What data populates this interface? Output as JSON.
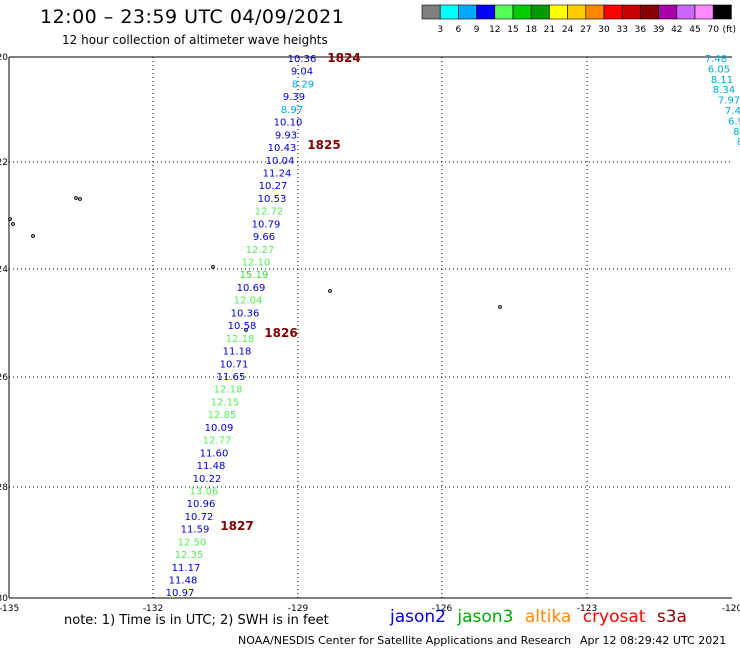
{
  "header": {
    "title": "12:00 – 23:59 UTC 04/09/2021",
    "subtitle": "12 hour collection of altimeter wave heights"
  },
  "colorbar": {
    "colors": [
      "#7f7f7f",
      "#00ffff",
      "#00aaff",
      "#0000ff",
      "#55ff55",
      "#00cc00",
      "#009900",
      "#ffff00",
      "#ffcc00",
      "#ff8800",
      "#ff0000",
      "#cc0000",
      "#880000",
      "#aa00aa",
      "#cc66ff",
      "#ff88ff",
      "#000000"
    ],
    "labels": [
      "3",
      "6",
      "9",
      "12",
      "15",
      "18",
      "21",
      "24",
      "27",
      "30",
      "33",
      "36",
      "39",
      "42",
      "45",
      "70"
    ],
    "unit": "(ft)"
  },
  "axes": {
    "lon_ticks": [
      "-135",
      "-132",
      "-129",
      "-126",
      "-123",
      "-120"
    ],
    "lat_ticks": [
      "20",
      "22",
      "24",
      "26",
      "28",
      "30"
    ]
  },
  "track": {
    "values": [
      "10.36",
      "9.04",
      "8.29",
      "9.39",
      "8.97",
      "10.10",
      "9.93",
      "10.43",
      "10.04",
      "11.24",
      "10.27",
      "10.53",
      "12.72",
      "10.79",
      "9.66",
      "12.27",
      "12.10",
      "15.19",
      "10.69",
      "12.04",
      "10.36",
      "10.58",
      "12.18",
      "11.18",
      "10.71",
      "11.65",
      "12.18",
      "12.15",
      "12.85",
      "10.09",
      "12.77",
      "11.60",
      "11.48",
      "10.22",
      "13.06",
      "10.96",
      "10.72",
      "11.59",
      "12.50",
      "12.35",
      "11.17",
      "11.48",
      "10.97"
    ],
    "colors": [
      "#0000cc",
      "#0000cc",
      "#00aaff",
      "#0000cc",
      "#00aaff",
      "#0000cc",
      "#0000cc",
      "#0000cc",
      "#0000cc",
      "#0000cc",
      "#0000cc",
      "#0000cc",
      "#55ee55",
      "#0000cc",
      "#0000cc",
      "#55ee55",
      "#55ee55",
      "#33dd33",
      "#0000cc",
      "#55ee55",
      "#0000cc",
      "#0000cc",
      "#55ee55",
      "#0000cc",
      "#0000cc",
      "#0000cc",
      "#55ee55",
      "#55ee55",
      "#55ee55",
      "#0000cc",
      "#55ee55",
      "#0000cc",
      "#0000cc",
      "#0000cc",
      "#55ee55",
      "#0000cc",
      "#0000cc",
      "#0000cc",
      "#55ee55",
      "#55ee55",
      "#0000cc",
      "#0000cc",
      "#0000cc"
    ],
    "right_values": [
      "7.48",
      "6.05",
      "8.11",
      "8.34",
      "7.97",
      "7.4",
      "6.9",
      "8.",
      "8"
    ]
  },
  "time_labels": [
    "1824",
    "1825",
    "1826",
    "1827"
  ],
  "footer": {
    "note": "note:  1) Time is in UTC;  2) SWH is in feet",
    "satellites": [
      {
        "name": "jason2",
        "color": "#0000dd"
      },
      {
        "name": "jason3",
        "color": "#00aa00"
      },
      {
        "name": "altika",
        "color": "#ff8800"
      },
      {
        "name": "cryosat",
        "color": "#ff0000"
      },
      {
        "name": "s3a",
        "color": "#880000"
      }
    ],
    "credit": "NOAA/NESDIS Center for Satellite Applications and Research",
    "stamp": "Apr 12 08:29:42 UTC 2021"
  }
}
